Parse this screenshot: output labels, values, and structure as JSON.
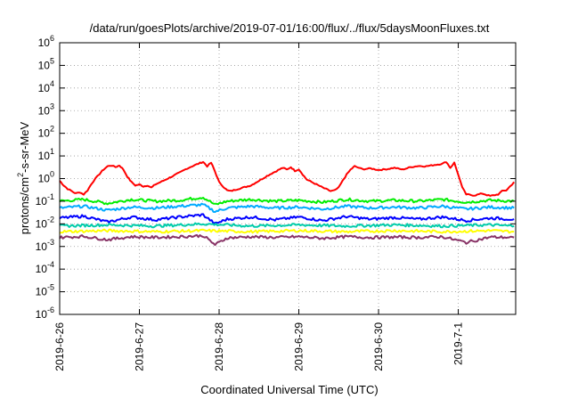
{
  "chart_data": {
    "type": "line",
    "title": "/data/run/goesPlots/archive/2019-07-01/16:00/flux/../flux/5daysMoonFluxes.txt",
    "xlabel": "Coordinated Universal Time (UTC)",
    "ylabel": "protons/cm²-s-sr-MeV",
    "ylabel_parts": {
      "pre": "protons/cm",
      "sup": "2",
      "post": "-s-sr-MeV"
    },
    "yscale": "log",
    "ylim_exp": [
      -6,
      6
    ],
    "y_ticks": [
      {
        "base": "10",
        "exp": "-6"
      },
      {
        "base": "10",
        "exp": "-5"
      },
      {
        "base": "10",
        "exp": "-4"
      },
      {
        "base": "10",
        "exp": "-3"
      },
      {
        "base": "10",
        "exp": "-2"
      },
      {
        "base": "10",
        "exp": "-1"
      },
      {
        "base": "10",
        "exp": "0"
      },
      {
        "base": "10",
        "exp": "1"
      },
      {
        "base": "10",
        "exp": "2"
      },
      {
        "base": "10",
        "exp": "3"
      },
      {
        "base": "10",
        "exp": "4"
      },
      {
        "base": "10",
        "exp": "5"
      },
      {
        "base": "10",
        "exp": "6"
      }
    ],
    "xlim_days": [
      0,
      5.72
    ],
    "x_ticks": [
      {
        "label": "2019-6-26",
        "day": 0
      },
      {
        "label": "2019-6-27",
        "day": 1
      },
      {
        "label": "2019-6-28",
        "day": 2
      },
      {
        "label": "2019-6-29",
        "day": 3
      },
      {
        "label": "2019-6-30",
        "day": 4
      },
      {
        "label": "2019-7-1",
        "day": 5
      }
    ],
    "grid": true,
    "legend": "none",
    "series": [
      {
        "color": "#ff0000",
        "points": [
          [
            0.0,
            0.8
          ],
          [
            0.05,
            0.5
          ],
          [
            0.1,
            0.35
          ],
          [
            0.15,
            0.28
          ],
          [
            0.2,
            0.22
          ],
          [
            0.25,
            0.25
          ],
          [
            0.3,
            0.2
          ],
          [
            0.35,
            0.3
          ],
          [
            0.4,
            0.6
          ],
          [
            0.45,
            1.0
          ],
          [
            0.5,
            1.6
          ],
          [
            0.55,
            2.5
          ],
          [
            0.6,
            3.5
          ],
          [
            0.65,
            3.8
          ],
          [
            0.7,
            3.2
          ],
          [
            0.75,
            3.8
          ],
          [
            0.8,
            2.5
          ],
          [
            0.85,
            1.2
          ],
          [
            0.9,
            0.7
          ],
          [
            0.95,
            0.5
          ],
          [
            1.0,
            0.55
          ],
          [
            1.05,
            0.45
          ],
          [
            1.1,
            0.5
          ],
          [
            1.15,
            0.4
          ],
          [
            1.2,
            0.55
          ],
          [
            1.3,
            0.8
          ],
          [
            1.4,
            1.2
          ],
          [
            1.5,
            1.8
          ],
          [
            1.6,
            2.8
          ],
          [
            1.7,
            4.0
          ],
          [
            1.8,
            5.5
          ],
          [
            1.85,
            3.5
          ],
          [
            1.9,
            5.0
          ],
          [
            1.95,
            2.0
          ],
          [
            2.0,
            0.7
          ],
          [
            2.05,
            0.45
          ],
          [
            2.1,
            0.3
          ],
          [
            2.15,
            0.28
          ],
          [
            2.2,
            0.32
          ],
          [
            2.3,
            0.4
          ],
          [
            2.4,
            0.5
          ],
          [
            2.5,
            0.8
          ],
          [
            2.6,
            1.3
          ],
          [
            2.7,
            2.0
          ],
          [
            2.8,
            3.0
          ],
          [
            2.85,
            2.5
          ],
          [
            2.9,
            3.2
          ],
          [
            2.95,
            2.2
          ],
          [
            3.0,
            2.6
          ],
          [
            3.05,
            1.5
          ],
          [
            3.1,
            0.9
          ],
          [
            3.2,
            0.6
          ],
          [
            3.3,
            0.4
          ],
          [
            3.4,
            0.28
          ],
          [
            3.45,
            0.3
          ],
          [
            3.5,
            0.4
          ],
          [
            3.55,
            0.8
          ],
          [
            3.6,
            1.5
          ],
          [
            3.65,
            2.5
          ],
          [
            3.7,
            3.5
          ],
          [
            3.75,
            3.0
          ],
          [
            3.8,
            2.6
          ],
          [
            3.9,
            2.8
          ],
          [
            4.0,
            2.4
          ],
          [
            4.1,
            2.6
          ],
          [
            4.2,
            3.0
          ],
          [
            4.3,
            2.5
          ],
          [
            4.4,
            3.2
          ],
          [
            4.5,
            3.6
          ],
          [
            4.6,
            3.5
          ],
          [
            4.7,
            4.0
          ],
          [
            4.8,
            4.5
          ],
          [
            4.85,
            5.5
          ],
          [
            4.9,
            3.0
          ],
          [
            4.95,
            5.0
          ],
          [
            5.0,
            1.5
          ],
          [
            5.05,
            0.4
          ],
          [
            5.1,
            0.2
          ],
          [
            5.2,
            0.18
          ],
          [
            5.3,
            0.22
          ],
          [
            5.4,
            0.17
          ],
          [
            5.5,
            0.2
          ],
          [
            5.55,
            0.28
          ],
          [
            5.6,
            0.3
          ],
          [
            5.65,
            0.45
          ],
          [
            5.7,
            0.7
          ]
        ]
      },
      {
        "color": "#00ee00",
        "points": [
          [
            0.0,
            0.1
          ],
          [
            0.3,
            0.12
          ],
          [
            0.6,
            0.08
          ],
          [
            0.9,
            0.12
          ],
          [
            1.2,
            0.1
          ],
          [
            1.5,
            0.11
          ],
          [
            1.8,
            0.15
          ],
          [
            1.95,
            0.07
          ],
          [
            2.1,
            0.1
          ],
          [
            2.4,
            0.12
          ],
          [
            2.7,
            0.1
          ],
          [
            3.0,
            0.11
          ],
          [
            3.3,
            0.09
          ],
          [
            3.6,
            0.12
          ],
          [
            3.9,
            0.1
          ],
          [
            4.2,
            0.11
          ],
          [
            4.5,
            0.1
          ],
          [
            4.8,
            0.12
          ],
          [
            5.1,
            0.09
          ],
          [
            5.4,
            0.11
          ],
          [
            5.7,
            0.1
          ]
        ]
      },
      {
        "color": "#00aaff",
        "points": [
          [
            0.0,
            0.05
          ],
          [
            0.3,
            0.06
          ],
          [
            0.6,
            0.04
          ],
          [
            0.9,
            0.055
          ],
          [
            1.2,
            0.05
          ],
          [
            1.5,
            0.06
          ],
          [
            1.8,
            0.07
          ],
          [
            1.95,
            0.035
          ],
          [
            2.1,
            0.05
          ],
          [
            2.4,
            0.06
          ],
          [
            2.7,
            0.05
          ],
          [
            3.0,
            0.055
          ],
          [
            3.3,
            0.045
          ],
          [
            3.6,
            0.06
          ],
          [
            3.9,
            0.05
          ],
          [
            4.2,
            0.055
          ],
          [
            4.5,
            0.05
          ],
          [
            4.8,
            0.06
          ],
          [
            5.1,
            0.045
          ],
          [
            5.4,
            0.055
          ],
          [
            5.7,
            0.05
          ]
        ]
      },
      {
        "color": "#0000ff",
        "points": [
          [
            0.0,
            0.018
          ],
          [
            0.3,
            0.022
          ],
          [
            0.6,
            0.012
          ],
          [
            0.9,
            0.02
          ],
          [
            1.2,
            0.015
          ],
          [
            1.5,
            0.02
          ],
          [
            1.8,
            0.025
          ],
          [
            1.95,
            0.01
          ],
          [
            2.1,
            0.016
          ],
          [
            2.4,
            0.02
          ],
          [
            2.7,
            0.015
          ],
          [
            3.0,
            0.02
          ],
          [
            3.3,
            0.014
          ],
          [
            3.6,
            0.021
          ],
          [
            3.9,
            0.016
          ],
          [
            4.2,
            0.019
          ],
          [
            4.5,
            0.016
          ],
          [
            4.8,
            0.02
          ],
          [
            5.1,
            0.014
          ],
          [
            5.4,
            0.018
          ],
          [
            5.7,
            0.016
          ]
        ]
      },
      {
        "color": "#00ccaa",
        "points": [
          [
            0.0,
            0.008
          ],
          [
            0.6,
            0.009
          ],
          [
            1.2,
            0.008
          ],
          [
            1.8,
            0.01
          ],
          [
            2.4,
            0.008
          ],
          [
            3.0,
            0.009
          ],
          [
            3.6,
            0.008
          ],
          [
            4.2,
            0.009
          ],
          [
            4.8,
            0.008
          ],
          [
            5.4,
            0.009
          ],
          [
            5.7,
            0.008
          ]
        ]
      },
      {
        "color": "#ffff00",
        "points": [
          [
            0.0,
            0.0045
          ],
          [
            0.6,
            0.005
          ],
          [
            1.2,
            0.0045
          ],
          [
            1.8,
            0.005
          ],
          [
            2.4,
            0.0045
          ],
          [
            3.0,
            0.005
          ],
          [
            3.6,
            0.0045
          ],
          [
            4.2,
            0.005
          ],
          [
            4.8,
            0.0045
          ],
          [
            5.4,
            0.005
          ],
          [
            5.7,
            0.0045
          ]
        ]
      },
      {
        "color": "#883366",
        "points": [
          [
            0.0,
            0.0025
          ],
          [
            0.3,
            0.0028
          ],
          [
            0.6,
            0.002
          ],
          [
            0.9,
            0.0027
          ],
          [
            1.2,
            0.0025
          ],
          [
            1.5,
            0.0027
          ],
          [
            1.8,
            0.003
          ],
          [
            1.95,
            0.0012
          ],
          [
            2.1,
            0.0024
          ],
          [
            2.4,
            0.0027
          ],
          [
            2.7,
            0.0025
          ],
          [
            3.0,
            0.0027
          ],
          [
            3.3,
            0.0023
          ],
          [
            3.6,
            0.0027
          ],
          [
            3.9,
            0.0025
          ],
          [
            4.2,
            0.0026
          ],
          [
            4.5,
            0.0025
          ],
          [
            4.8,
            0.0027
          ],
          [
            5.1,
            0.0015
          ],
          [
            5.4,
            0.0026
          ],
          [
            5.7,
            0.0025
          ]
        ]
      }
    ]
  }
}
